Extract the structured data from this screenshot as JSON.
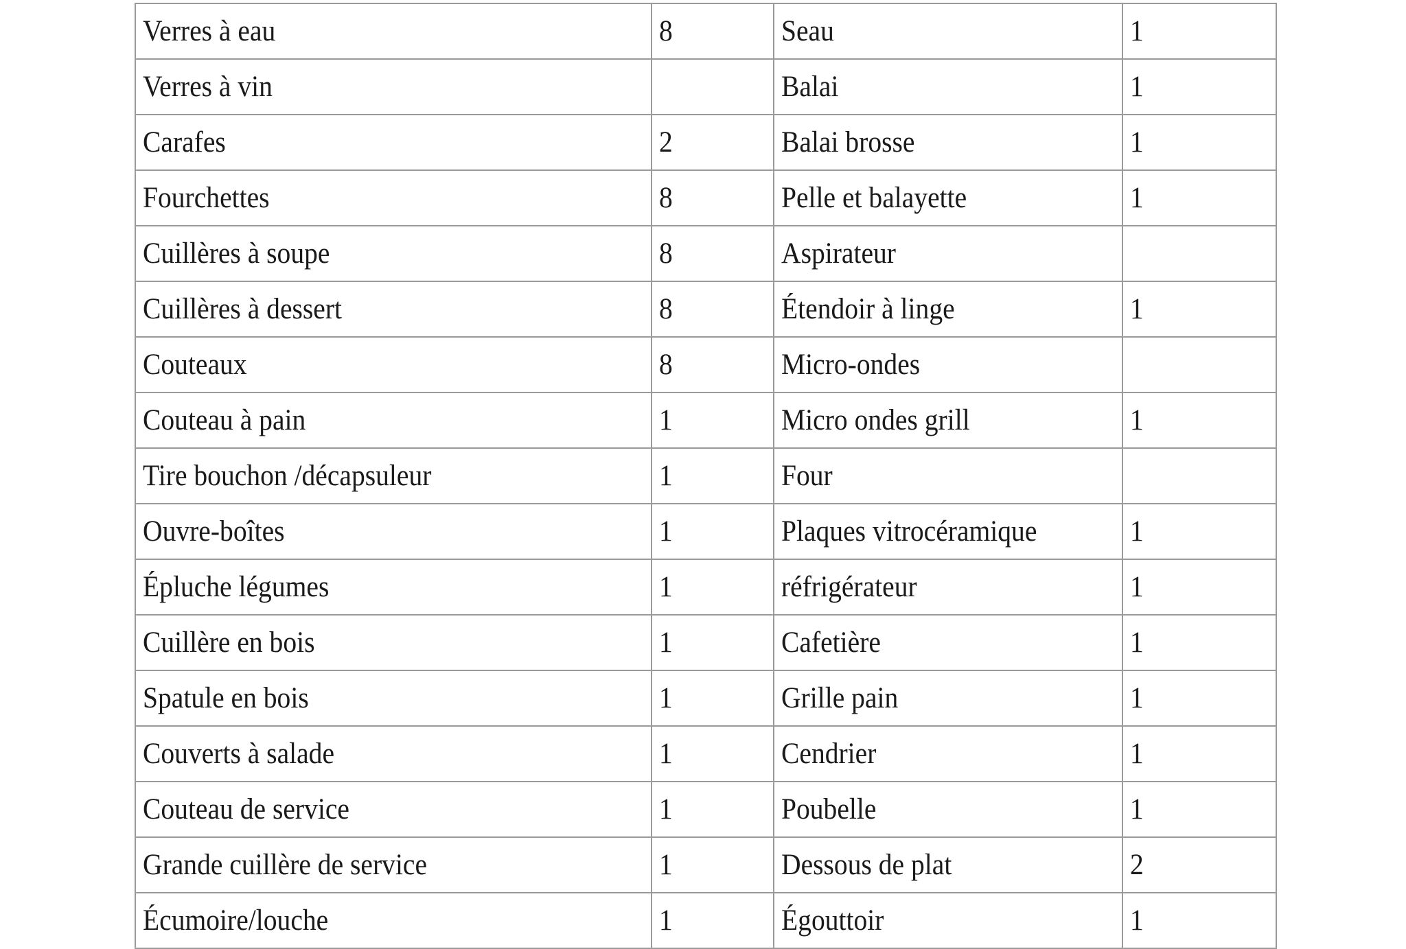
{
  "rows": [
    {
      "item_left": "Verres à eau",
      "qty_left": "8",
      "item_right": "Seau",
      "qty_right": "1"
    },
    {
      "item_left": "Verres à vin",
      "qty_left": "",
      "item_right": "Balai",
      "qty_right": "1"
    },
    {
      "item_left": "Carafes",
      "qty_left": "2",
      "item_right": "Balai brosse",
      "qty_right": "1"
    },
    {
      "item_left": "Fourchettes",
      "qty_left": "8",
      "item_right": "Pelle et balayette",
      "qty_right": "1"
    },
    {
      "item_left": "Cuillères à soupe",
      "qty_left": "8",
      "item_right": "Aspirateur",
      "qty_right": ""
    },
    {
      "item_left": "Cuillères à dessert",
      "qty_left": "8",
      "item_right": "Étendoir à linge",
      "qty_right": "1"
    },
    {
      "item_left": "Couteaux",
      "qty_left": "8",
      "item_right": "Micro-ondes",
      "qty_right": ""
    },
    {
      "item_left": "Couteau à pain",
      "qty_left": "1",
      "item_right": "Micro ondes grill",
      "qty_right": "1"
    },
    {
      "item_left": "Tire bouchon /décapsuleur",
      "qty_left": "1",
      "item_right": "Four",
      "qty_right": ""
    },
    {
      "item_left": "Ouvre-boîtes",
      "qty_left": "1",
      "item_right": "Plaques vitrocéramique",
      "qty_right": "1"
    },
    {
      "item_left": "Épluche légumes",
      "qty_left": "1",
      "item_right": "réfrigérateur",
      "qty_right": "1"
    },
    {
      "item_left": "Cuillère en bois",
      "qty_left": "1",
      "item_right": "Cafetière",
      "qty_right": "1"
    },
    {
      "item_left": "Spatule en bois",
      "qty_left": "1",
      "item_right": "Grille pain",
      "qty_right": "1"
    },
    {
      "item_left": "Couverts à salade",
      "qty_left": "1",
      "item_right": "Cendrier",
      "qty_right": "1"
    },
    {
      "item_left": "Couteau de service",
      "qty_left": "1",
      "item_right": "Poubelle",
      "qty_right": "1"
    },
    {
      "item_left": "Grande cuillère de service",
      "qty_left": "1",
      "item_right": "Dessous de plat",
      "qty_right": "2"
    },
    {
      "item_left": "Écumoire/louche",
      "qty_left": "1",
      "item_right": "Égouttoir",
      "qty_right": "1"
    }
  ]
}
